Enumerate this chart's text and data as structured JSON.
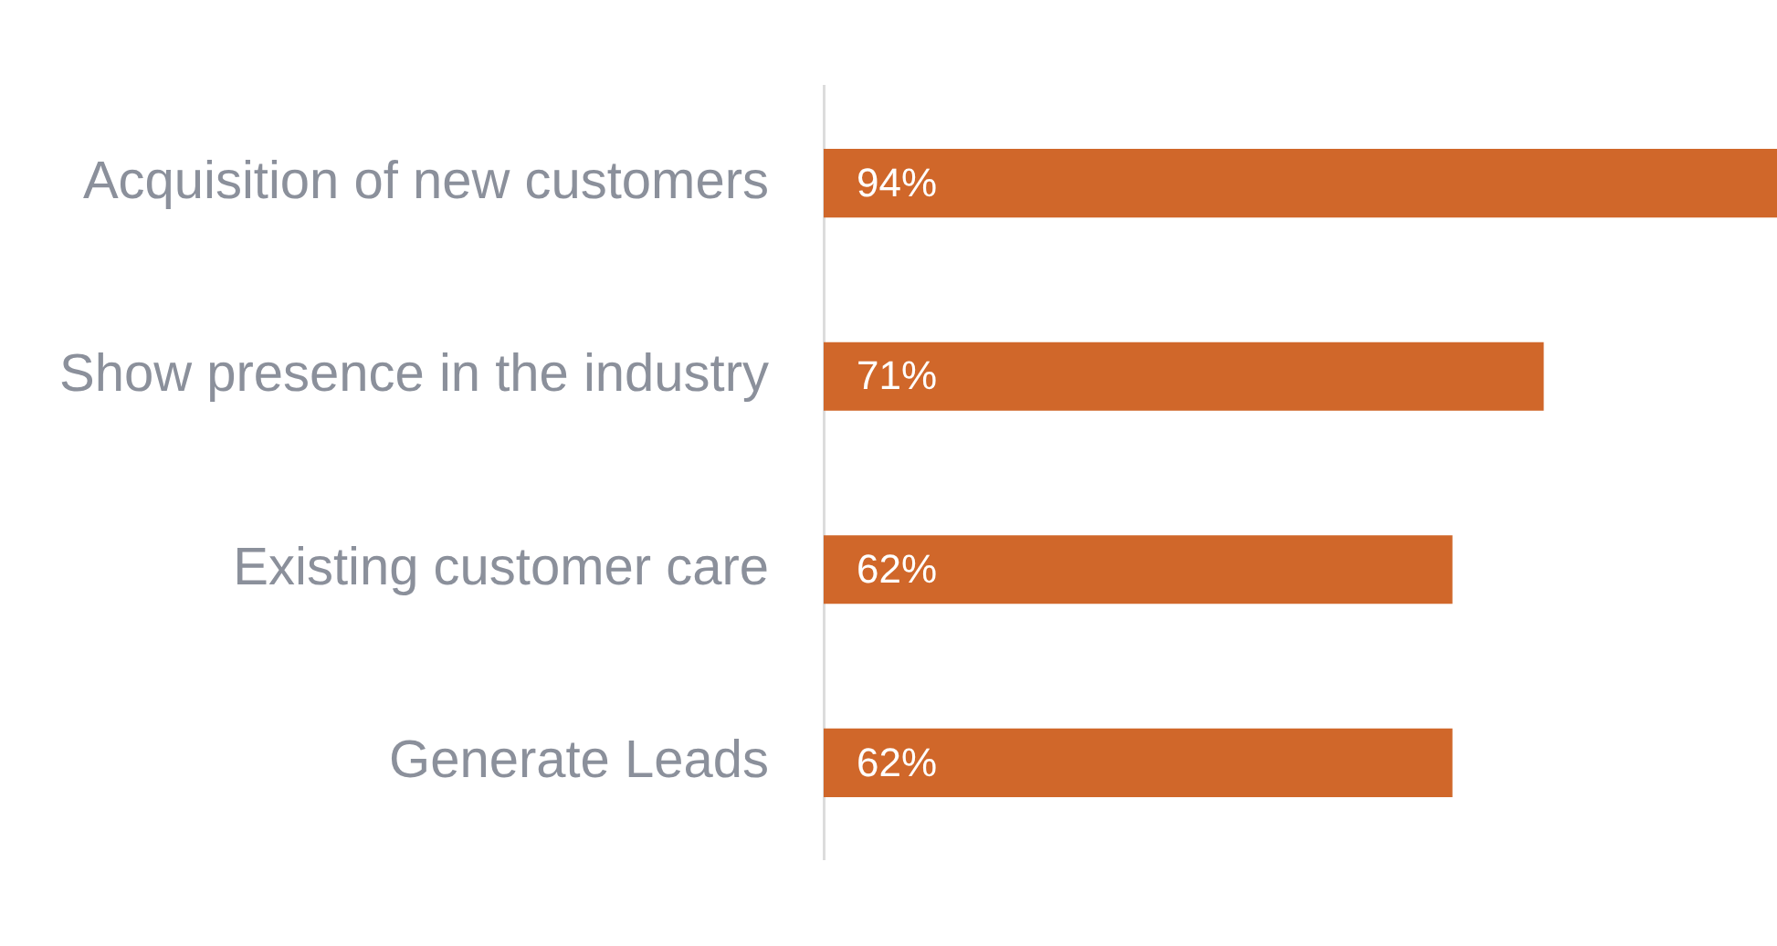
{
  "chart_data": {
    "type": "bar",
    "orientation": "horizontal",
    "categories": [
      "Acquisition of new customers",
      "Show presence in the industry",
      "Existing customer care",
      "Generate Leads"
    ],
    "values": [
      94,
      71,
      62,
      62
    ],
    "value_labels": [
      "94%",
      "71%",
      "62%",
      "62%"
    ],
    "color": "#d0672a",
    "legend": false
  }
}
